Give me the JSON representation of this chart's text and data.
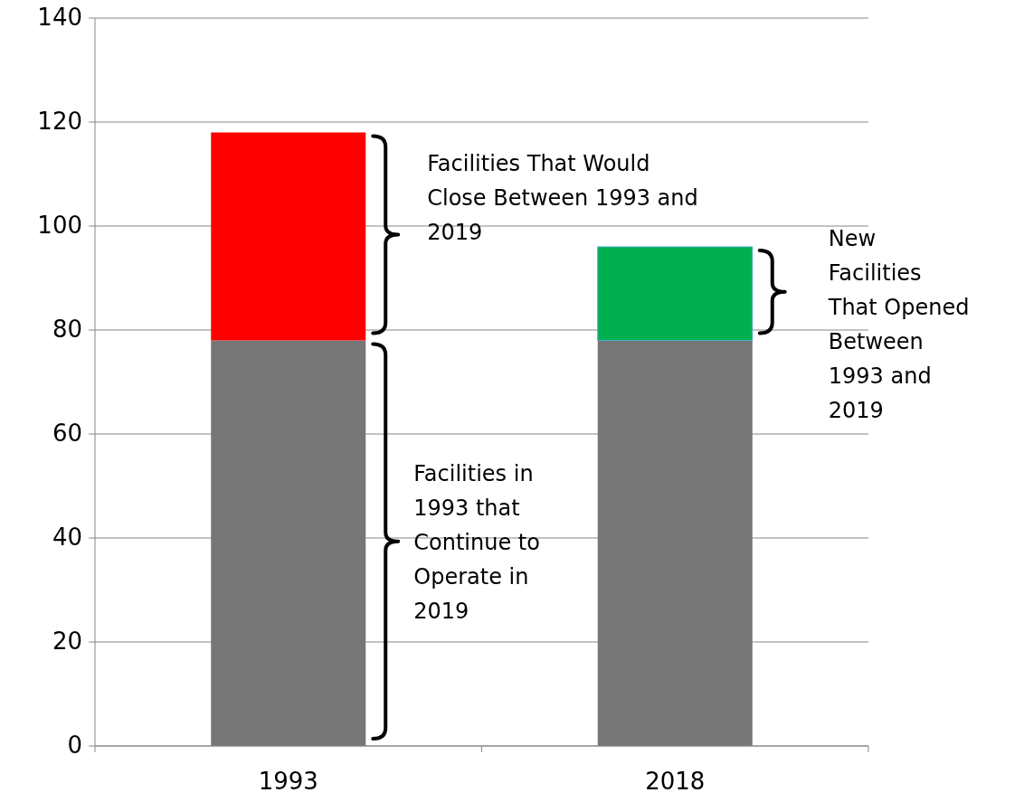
{
  "chart_data": {
    "type": "bar",
    "stacked": true,
    "categories": [
      "1993",
      "2018"
    ],
    "series": [
      {
        "color": "#767676",
        "values": [
          78,
          78
        ]
      },
      {
        "color": "#ff0000",
        "values": [
          40,
          null
        ]
      },
      {
        "color": "#00b050",
        "values": [
          null,
          18
        ]
      }
    ],
    "ylim": [
      0,
      140
    ],
    "yticks": [
      0,
      20,
      40,
      60,
      80,
      100,
      120,
      140
    ],
    "grid": "y",
    "annotations": [
      "Facilities That Would Close Between 1993 and 2019",
      "New Facilities That Opened Between 1993 and 2019",
      "Facilities in 1993 that Continue to Operate in 2019"
    ]
  }
}
